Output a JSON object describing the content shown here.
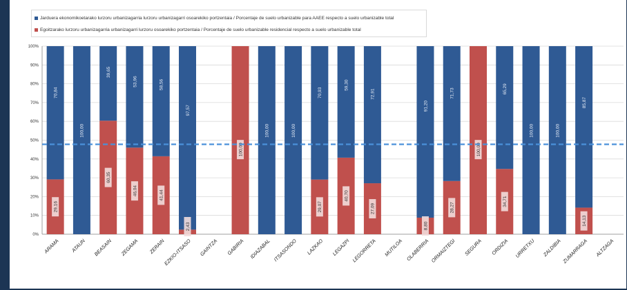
{
  "chart_data": {
    "type": "bar",
    "stacked": true,
    "categories": [
      "ARAMA",
      "ATAUN",
      "BEASAIN",
      "ZEGAMA",
      "ZERAIN",
      "EZKIO-ITSASO",
      "GAINTZA",
      "GABIRIA",
      "IDIAZABAL",
      "ITSASONDO",
      "LAZKAO",
      "LEGAZPI",
      "LEGORRETA",
      "MUTILOA",
      "OLABERRIA",
      "ORMAIZTEGI",
      "SEGURA",
      "ORDIZIA",
      "URRETXU",
      "ZALDIBIA",
      "ZUMARRAGA",
      "ALTZAGA"
    ],
    "series": [
      {
        "name": "Egoitzarako lurzoru urbanizagarria urbanizagarri lurzoru osoarekiko portzentaia / Porcentaje de suelo urbanizable residencial respecto a suelo urbanizable total",
        "color": "#c0504d",
        "values": [
          29.16,
          0,
          60.35,
          46.04,
          41.44,
          2.43,
          0,
          100,
          0,
          0,
          29.07,
          40.7,
          27.09,
          0,
          8.8,
          28.27,
          100,
          34.71,
          0,
          0,
          14.13,
          0
        ],
        "labels": [
          "29,16",
          "",
          "60,35",
          "46,04",
          "41,44",
          "2,43",
          "",
          "",
          "",
          "",
          "29,07",
          "40,70",
          "27,09",
          "",
          "8,80",
          "28,27",
          "",
          "34,71",
          "",
          "",
          "14,13",
          ""
        ]
      },
      {
        "name": "Jarduera ekonomikoetarako lurzoru urbanizagarria lurzoru urbanizagarri osoarekiko portzentaia / Porcentaje de suelo urbanizable para AAEE respecto a suelo urbanizable total",
        "color": "#2f5a94",
        "values": [
          70.84,
          100,
          39.65,
          53.96,
          58.56,
          97.57,
          0,
          0,
          100,
          100,
          70.93,
          59.3,
          72.91,
          0,
          91.2,
          71.73,
          0,
          65.29,
          100,
          100,
          85.87,
          0
        ],
        "labels": [
          "70,84",
          "100,00",
          "39,65",
          "53,96",
          "58,56",
          "97,57",
          "",
          "",
          "100,00",
          "100,00",
          "70,93",
          "59,30",
          "72,91",
          "",
          "91,20",
          "71,73",
          "",
          "65,29",
          "100,00",
          "100,00",
          "85,87",
          ""
        ]
      }
    ],
    "center_labels": [
      "",
      "",
      "",
      "",
      "",
      "",
      "",
      "100,00",
      "",
      "",
      "",
      "",
      "",
      "",
      "",
      "",
      "100,00",
      "",
      "",
      "",
      "",
      ""
    ],
    "ylim": [
      0,
      100
    ],
    "yticks": [
      "0%",
      "10%",
      "20%",
      "30%",
      "40%",
      "50%",
      "60%",
      "70%",
      "80%",
      "90%",
      "100%"
    ],
    "reference_line": 47.8,
    "grid": true,
    "legend_position": "top-left"
  },
  "legend": {
    "entry1": "Jarduera ekonomikoetarako lurzoru urbanizagarria lurzoru urbanizagarri osoarekiko portzentaia / Porcentaje de suelo urbanizable para AAEE respecto a suelo urbanizable total",
    "entry2": "Egoitzarako lurzoru urbanizagarria urbanizagarri lurzoru osoarekiko portzentaia / Porcentaje de suelo urbanizable residencial respecto a suelo urbanizable total"
  }
}
